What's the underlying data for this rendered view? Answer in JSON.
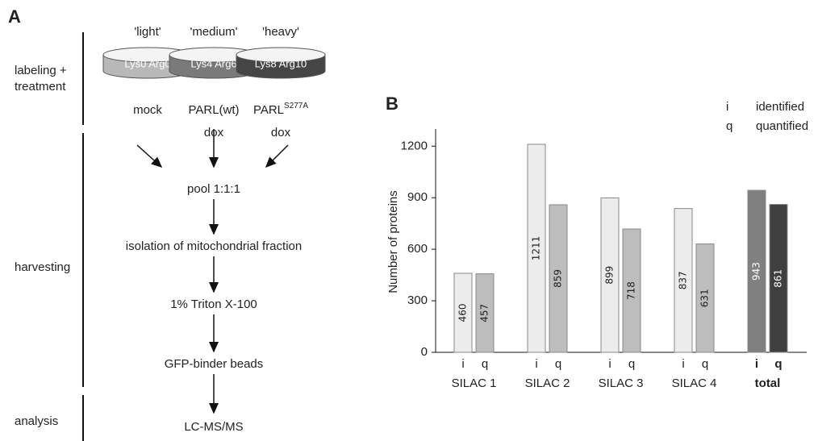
{
  "panel_a": {
    "label": "A",
    "sections": [
      {
        "lines": [
          "labeling +",
          "treatment"
        ]
      },
      {
        "lines": [
          "harvesting"
        ]
      },
      {
        "lines": [
          "analysis"
        ]
      }
    ],
    "dishes": [
      {
        "name": "'light'",
        "dish_label": "Lys0 Arg0",
        "condition": "mock",
        "color": "#b8b8b8"
      },
      {
        "name": "'medium'",
        "dish_label": "Lys4 Arg6",
        "condition": "PARL(wt)",
        "treatment": "dox",
        "color": "#7a7a7a"
      },
      {
        "name": "'heavy'",
        "dish_label": "Lys8 Arg10",
        "condition": "PARL",
        "condition_sup": "S277A",
        "treatment": "dox",
        "color": "#454545"
      }
    ],
    "steps": [
      "pool 1:1:1",
      "isolation of mitochondrial fraction",
      "1% Triton X-100",
      "GFP-binder beads",
      "LC-MS/MS"
    ]
  },
  "chart_data": {
    "type": "bar",
    "panel_label": "B",
    "y_label": "Number of proteins",
    "categories": [
      "SILAC 1",
      "SILAC 2",
      "SILAC 3",
      "SILAC 4",
      "total"
    ],
    "series": [
      {
        "key": "i",
        "name": "identified",
        "values": [
          460,
          1211,
          899,
          837,
          943
        ],
        "colors": [
          "#ececec",
          "#ececec",
          "#ececec",
          "#ececec",
          "#808080"
        ]
      },
      {
        "key": "q",
        "name": "quantified",
        "values": [
          457,
          859,
          718,
          631,
          861
        ],
        "colors": [
          "#bdbdbd",
          "#bdbdbd",
          "#bdbdbd",
          "#bdbdbd",
          "#3f3f3f"
        ]
      }
    ],
    "ylim": [
      0,
      1300
    ],
    "yticks": [
      0,
      300,
      600,
      900,
      1200
    ]
  }
}
